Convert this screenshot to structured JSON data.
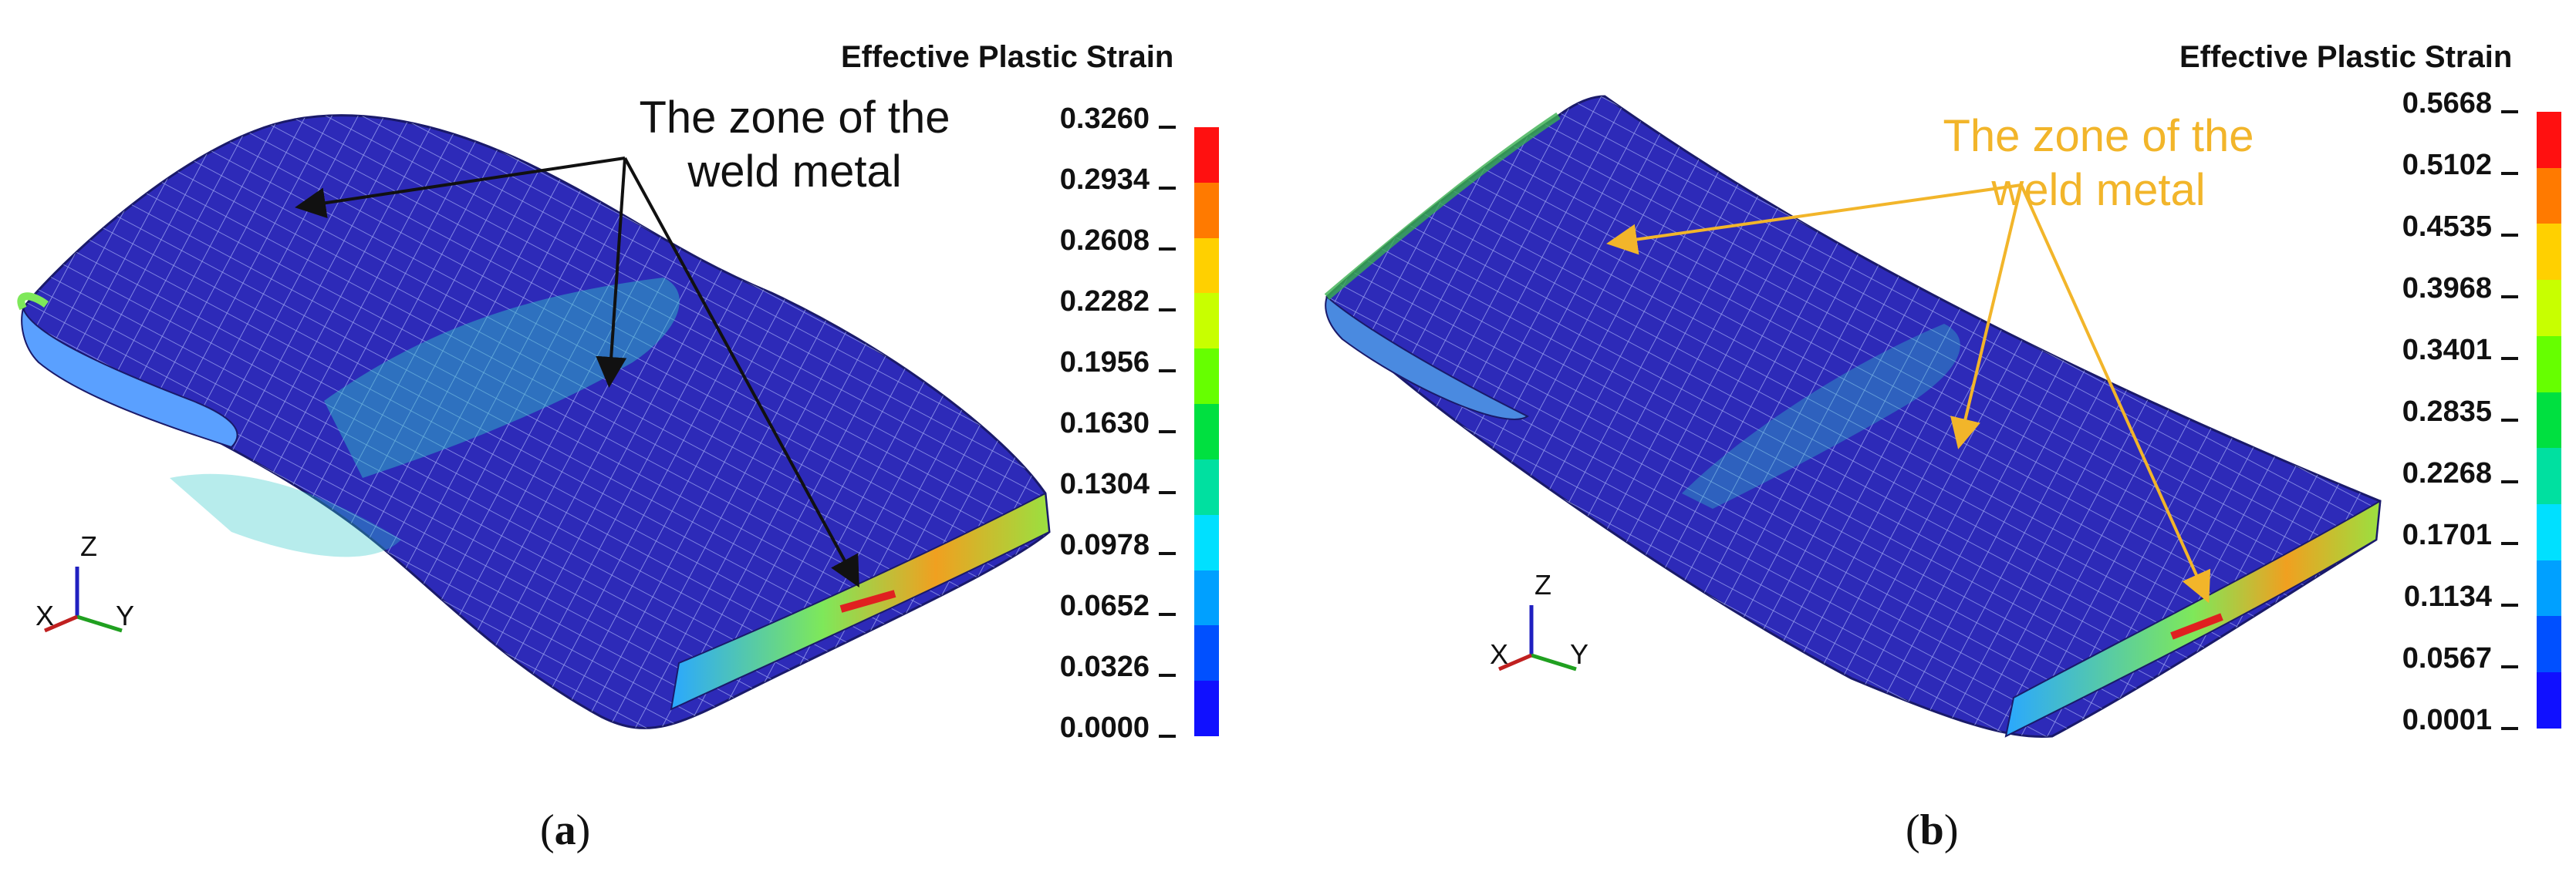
{
  "panels": [
    {
      "id": "a",
      "legend_title": "Effective Plastic Strain",
      "ticks": [
        "0.3260",
        "0.2934",
        "0.2608",
        "0.2282",
        "0.1956",
        "0.1630",
        "0.1304",
        "0.0978",
        "0.0652",
        "0.0326",
        "0.0000"
      ],
      "annotation_line1": "The zone of the",
      "annotation_line2": "weld metal",
      "annotation_color": "#111111",
      "caption_open": "(",
      "caption_letter": "a",
      "caption_close": ")",
      "axis_labels": {
        "z": "Z",
        "x": "X",
        "y": "Y"
      }
    },
    {
      "id": "b",
      "legend_title": "Effective Plastic Strain",
      "ticks": [
        "0.5668",
        "0.5102",
        "0.4535",
        "0.3968",
        "0.3401",
        "0.2835",
        "0.2268",
        "0.1701",
        "0.1134",
        "0.0567",
        "0.0001"
      ],
      "annotation_line1": "The zone of the",
      "annotation_line2": "weld metal",
      "annotation_color": "#f2b52a",
      "caption_open": "(",
      "caption_letter": "b",
      "caption_close": ")",
      "axis_labels": {
        "z": "Z",
        "x": "X",
        "y": "Y"
      }
    }
  ],
  "colorbar_colors": [
    "#ff1010",
    "#ff7a00",
    "#ffd000",
    "#c8ff00",
    "#66ff00",
    "#00e040",
    "#00e0a0",
    "#00e0ff",
    "#00a0ff",
    "#0050ff",
    "#1010ff"
  ]
}
